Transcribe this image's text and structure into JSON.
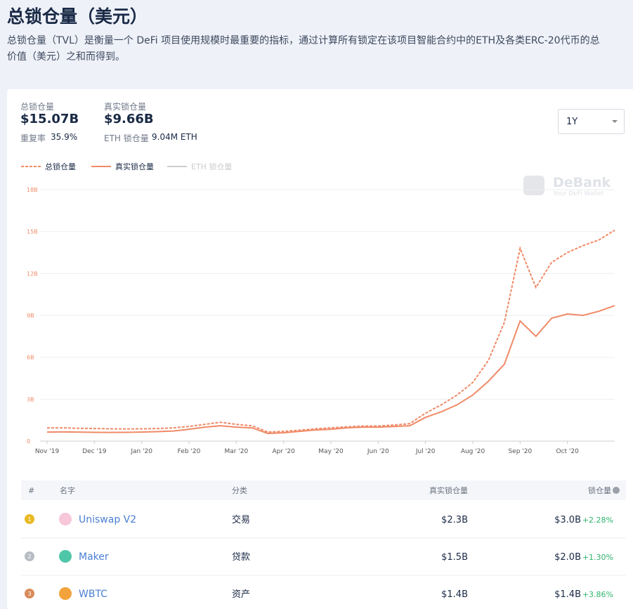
{
  "header": {
    "title": "总锁仓量（美元）",
    "description": [
      "总锁仓量（TVL）是衡量一个 DeFi 项目使用规模时最重要的指标，通过计算所有锁定在该项目智能合约中的ETH及各类ERC-20代币的总",
      "价值（美元）之和而得到。"
    ]
  },
  "stats": {
    "tvl_label": "总锁仓量",
    "tvl": "$15.07B",
    "dup_label": "重复率",
    "dup": "35.9%",
    "real_label": "真实锁仓量",
    "real": "$9.66B",
    "eth_label": "ETH 锁仓量",
    "eth": "9.04M ETH"
  },
  "range": "1Y",
  "watermark": {
    "brand": "DeBank",
    "tagline": "Your DeFi Wallet"
  },
  "chart_data": {
    "type": "line",
    "categories": [
      "Nov '19",
      null,
      null,
      "Dec '19",
      null,
      null,
      "Jan '20",
      null,
      null,
      "Feb '20",
      null,
      null,
      "Mar '20",
      null,
      null,
      "Apr '20",
      null,
      null,
      "May '20",
      null,
      null,
      "Jun '20",
      null,
      null,
      "Jul '20",
      null,
      null,
      "Aug '20",
      null,
      null,
      "Sep '20",
      null,
      null,
      "Oct '20",
      null,
      null,
      null
    ],
    "series": [
      {
        "name": "总锁仓量",
        "color": "#f08a67",
        "dashed": true,
        "values": [
          0.95,
          0.95,
          0.92,
          0.9,
          0.88,
          0.87,
          0.88,
          0.9,
          0.95,
          1.05,
          1.2,
          1.35,
          1.2,
          1.1,
          0.65,
          0.7,
          0.78,
          0.88,
          0.95,
          1.02,
          1.08,
          1.08,
          1.15,
          1.25,
          2.0,
          2.6,
          3.3,
          4.2,
          5.8,
          8.5,
          13.8,
          11.0,
          12.8,
          13.5,
          14.0,
          14.4,
          15.1
        ]
      },
      {
        "name": "真实锁仓量",
        "color": "#f08a67",
        "dashed": false,
        "values": [
          0.65,
          0.66,
          0.65,
          0.63,
          0.62,
          0.63,
          0.65,
          0.68,
          0.72,
          0.85,
          1.0,
          1.1,
          1.0,
          0.95,
          0.55,
          0.6,
          0.7,
          0.8,
          0.85,
          0.95,
          1.0,
          1.0,
          1.05,
          1.1,
          1.7,
          2.1,
          2.6,
          3.3,
          4.3,
          5.5,
          8.6,
          7.5,
          8.8,
          9.1,
          9.0,
          9.3,
          9.7
        ]
      }
    ],
    "legend_inactive": {
      "name": "ETH 锁仓量",
      "color": "#cccccc"
    },
    "ylim": [
      0,
      18
    ],
    "yticks": [
      0,
      {
        "value": 3,
        "label": "3B"
      },
      {
        "value": 6,
        "label": "6B"
      },
      {
        "value": 9,
        "label": "9B"
      },
      {
        "value": 12,
        "label": "12B"
      },
      {
        "value": 15,
        "label": "15B"
      },
      {
        "value": 18,
        "label": "18B"
      }
    ],
    "grid": true
  },
  "table": {
    "columns": [
      "#",
      "名字",
      "分类",
      "真实锁仓量",
      "锁仓量"
    ],
    "rows": [
      {
        "rank": "1",
        "name": "Uniswap V2",
        "category": "交易",
        "real": "$2.3B",
        "tvl": "$3.0B",
        "change": "+2.28%",
        "medal": "#e8b923",
        "icon": "#f7c6d9"
      },
      {
        "rank": "2",
        "name": "Maker",
        "category": "贷款",
        "real": "$1.5B",
        "tvl": "$2.0B",
        "change": "+1.30%",
        "medal": "#b8bcc4",
        "icon": "#4fc6a8"
      },
      {
        "rank": "3",
        "name": "WBTC",
        "category": "资产",
        "real": "$1.4B",
        "tvl": "$1.4B",
        "change": "+3.86%",
        "medal": "#d98b5a",
        "icon": "#f3a33b"
      }
    ]
  }
}
